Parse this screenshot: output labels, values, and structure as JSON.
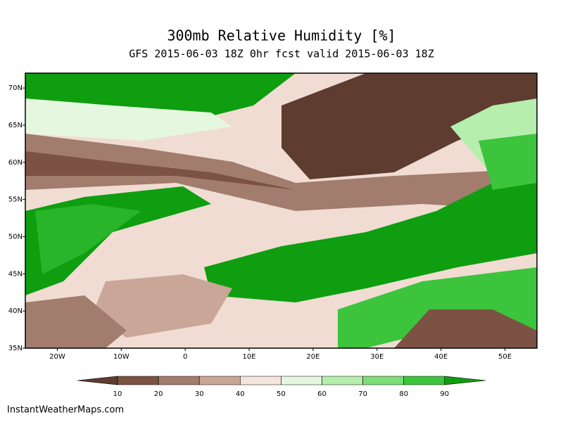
{
  "header": {
    "title": "300mb Relative Humidity [%]",
    "subtitle": "GFS 2015-06-03 18Z 0hr fcst valid 2015-06-03 18Z"
  },
  "map": {
    "lon_range": [
      -25,
      55
    ],
    "lat_range": [
      35,
      72
    ],
    "lat_ticks": [
      {
        "value": 70,
        "label": "70N"
      },
      {
        "value": 65,
        "label": "65N"
      },
      {
        "value": 60,
        "label": "60N"
      },
      {
        "value": 55,
        "label": "55N"
      },
      {
        "value": 50,
        "label": "50N"
      },
      {
        "value": 45,
        "label": "45N"
      },
      {
        "value": 40,
        "label": "40N"
      },
      {
        "value": 35,
        "label": "35N"
      }
    ],
    "lon_ticks": [
      {
        "value": -20,
        "label": "20W"
      },
      {
        "value": -10,
        "label": "10W"
      },
      0,
      {
        "value": 10,
        "label": "10E"
      },
      {
        "value": 20,
        "label": "20E"
      },
      {
        "value": 30,
        "label": "30E"
      },
      {
        "value": 40,
        "label": "40E"
      },
      {
        "value": 50,
        "label": "50E"
      }
    ]
  },
  "colorbar": {
    "ticks": [
      10,
      20,
      30,
      40,
      50,
      60,
      70,
      80,
      90
    ],
    "colors": [
      "#5e3c30",
      "#7b5244",
      "#a27c6c",
      "#c9a698",
      "#f5e4dc",
      "#e6f7e0",
      "#b6eeae",
      "#7ddd78",
      "#3cc43c",
      "#0e9e10"
    ]
  },
  "footer": {
    "credit": "InstantWeatherMaps.com"
  }
}
